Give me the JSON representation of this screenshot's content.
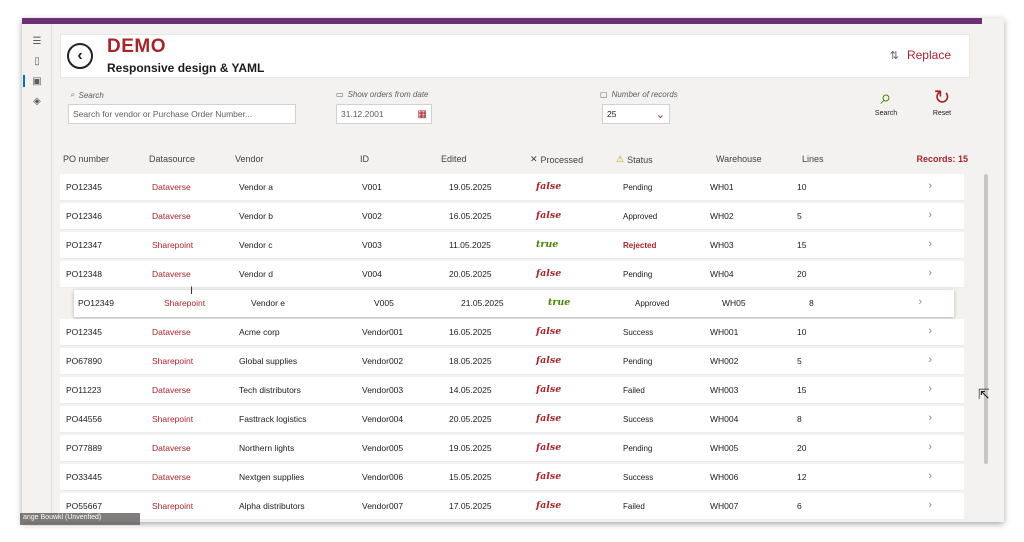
{
  "app": {
    "title": "DEMO",
    "subtitle": "Responsive design & YAML",
    "replace_label": "Replace"
  },
  "filters": {
    "search_label": "Search",
    "search_placeholder": "Search for vendor or Purchase Order Number...",
    "date_label": "Show orders from date",
    "date_value": "31.12.2001",
    "records_label": "Number of records",
    "records_value": "25",
    "search_button": "Search",
    "reset_button": "Reset"
  },
  "grid": {
    "columns": {
      "po": "PO number",
      "ds": "Datasource",
      "vendor": "Vendor",
      "id": "ID",
      "edited": "Edited",
      "processed": "Processed",
      "status": "Status",
      "warehouse": "Warehouse",
      "lines": "Lines"
    },
    "records_count": "Records: 15",
    "rows": [
      {
        "po": "PO12345",
        "ds": "Dataverse",
        "vendor": "Vendor a",
        "id": "V001",
        "edited": "19.05.2025",
        "processed": "false",
        "status": "Pending",
        "warehouse": "WH01",
        "lines": "10"
      },
      {
        "po": "PO12346",
        "ds": "Dataverse",
        "vendor": "Vendor b",
        "id": "V002",
        "edited": "16.05.2025",
        "processed": "false",
        "status": "Approved",
        "warehouse": "WH02",
        "lines": "5"
      },
      {
        "po": "PO12347",
        "ds": "Sharepoint",
        "vendor": "Vendor c",
        "id": "V003",
        "edited": "11.05.2025",
        "processed": "true",
        "status": "Rejected",
        "warehouse": "WH03",
        "lines": "15"
      },
      {
        "po": "PO12348",
        "ds": "Dataverse",
        "vendor": "Vendor d",
        "id": "V004",
        "edited": "20.05.2025",
        "processed": "false",
        "status": "Pending",
        "warehouse": "WH04",
        "lines": "20"
      },
      {
        "po": "PO12349",
        "ds": "Sharepoint",
        "vendor": "Vendor e",
        "id": "V005",
        "edited": "21.05.2025",
        "processed": "true",
        "status": "Approved",
        "warehouse": "WH05",
        "lines": "8"
      },
      {
        "po": "PO12345",
        "ds": "Dataverse",
        "vendor": "Acme corp",
        "id": "Vendor001",
        "edited": "16.05.2025",
        "processed": "false",
        "status": "Success",
        "warehouse": "WH001",
        "lines": "10"
      },
      {
        "po": "PO67890",
        "ds": "Sharepoint",
        "vendor": "Global supplies",
        "id": "Vendor002",
        "edited": "18.05.2025",
        "processed": "false",
        "status": "Pending",
        "warehouse": "WH002",
        "lines": "5"
      },
      {
        "po": "PO11223",
        "ds": "Dataverse",
        "vendor": "Tech distributors",
        "id": "Vendor003",
        "edited": "14.05.2025",
        "processed": "false",
        "status": "Failed",
        "warehouse": "WH003",
        "lines": "15"
      },
      {
        "po": "PO44556",
        "ds": "Sharepoint",
        "vendor": "Fasttrack logistics",
        "id": "Vendor004",
        "edited": "20.05.2025",
        "processed": "false",
        "status": "Success",
        "warehouse": "WH004",
        "lines": "8"
      },
      {
        "po": "PO77889",
        "ds": "Dataverse",
        "vendor": "Northern lights",
        "id": "Vendor005",
        "edited": "19.05.2025",
        "processed": "false",
        "status": "Pending",
        "warehouse": "WH005",
        "lines": "20"
      },
      {
        "po": "PO33445",
        "ds": "Dataverse",
        "vendor": "Nextgen supplies",
        "id": "Vendor006",
        "edited": "15.05.2025",
        "processed": "false",
        "status": "Success",
        "warehouse": "WH006",
        "lines": "12"
      },
      {
        "po": "PO55667",
        "ds": "Sharepoint",
        "vendor": "Alpha distributors",
        "id": "Vendor007",
        "edited": "17.05.2025",
        "processed": "false",
        "status": "Failed",
        "warehouse": "WH007",
        "lines": "6"
      }
    ]
  },
  "statusbar": {
    "tooltip": "ange Bouwkl (Unverified)"
  },
  "colors": {
    "accent": "#a4262c",
    "topbar": "#6b2f74",
    "true_color": "#498205"
  }
}
